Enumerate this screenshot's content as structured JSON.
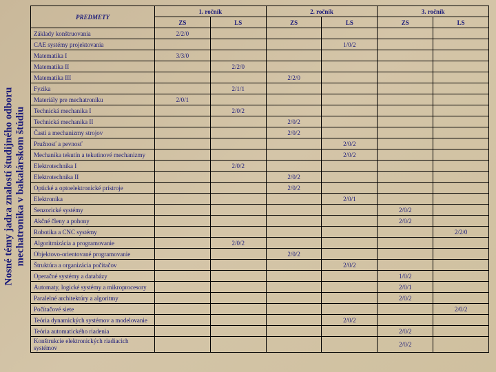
{
  "sidebar": {
    "line1": "Nosné témy jadra znalostí študijného odboru",
    "line2": "mechatronika v bakalárskom štúdiu"
  },
  "header": {
    "subjects": "PREDMETY",
    "years": [
      "1. ročník",
      "2. ročník",
      "3. ročník"
    ],
    "sems": [
      "ZS",
      "LS",
      "ZS",
      "LS",
      "ZS",
      "LS"
    ]
  },
  "rows": [
    {
      "name": "Základy konštruovania",
      "v": [
        "2/2/0",
        "",
        "",
        "",
        "",
        ""
      ]
    },
    {
      "name": "CAE systémy projektovania",
      "v": [
        "",
        "",
        "",
        "1/0/2",
        "",
        ""
      ]
    },
    {
      "name": "Matematika I",
      "v": [
        "3/3/0",
        "",
        "",
        "",
        "",
        ""
      ]
    },
    {
      "name": "Matematika II",
      "v": [
        "",
        "2/2/0",
        "",
        "",
        "",
        ""
      ]
    },
    {
      "name": "Matematika III",
      "v": [
        "",
        "",
        "2/2/0",
        "",
        "",
        ""
      ]
    },
    {
      "name": "Fyzika",
      "v": [
        "",
        "2/1/1",
        "",
        "",
        "",
        ""
      ]
    },
    {
      "name": "Materiály pre mechatroniku",
      "v": [
        "2/0/1",
        "",
        "",
        "",
        "",
        ""
      ]
    },
    {
      "name": "Technická mechanika I",
      "v": [
        "",
        "2/0/2",
        "",
        "",
        "",
        ""
      ]
    },
    {
      "name": "Technická mechanika II",
      "v": [
        "",
        "",
        "2/0/2",
        "",
        "",
        ""
      ]
    },
    {
      "name": "Časti a mechanizmy strojov",
      "v": [
        "",
        "",
        "2/0/2",
        "",
        "",
        ""
      ]
    },
    {
      "name": "Pružnosť a pevnosť",
      "v": [
        "",
        "",
        "",
        "2/0/2",
        "",
        ""
      ]
    },
    {
      "name": "Mechanika tekutín a tekutinové mechanizmy",
      "v": [
        "",
        "",
        "",
        "2/0/2",
        "",
        ""
      ]
    },
    {
      "name": "Elektrotechnika I",
      "v": [
        "",
        "2/0/2",
        "",
        "",
        "",
        ""
      ]
    },
    {
      "name": "Elektrotechnika II",
      "v": [
        "",
        "",
        "2/0/2",
        "",
        "",
        ""
      ]
    },
    {
      "name": "Optické a optoelektronické prístroje",
      "v": [
        "",
        "",
        "2/0/2",
        "",
        "",
        ""
      ]
    },
    {
      "name": "Elektronika",
      "v": [
        "",
        "",
        "",
        "2/0/1",
        "",
        ""
      ]
    },
    {
      "name": "Senzorické systémy",
      "v": [
        "",
        "",
        "",
        "",
        "2/0/2",
        ""
      ]
    },
    {
      "name": "Akčné členy a pohony",
      "v": [
        "",
        "",
        "",
        "",
        "2/0/2",
        ""
      ]
    },
    {
      "name": "Robotika a CNC systémy",
      "v": [
        "",
        "",
        "",
        "",
        "",
        "2/2/0"
      ]
    },
    {
      "name": "Algoritmizácia a programovanie",
      "v": [
        "",
        "2/0/2",
        "",
        "",
        "",
        ""
      ]
    },
    {
      "name": "Objektovo-orientované programovanie",
      "v": [
        "",
        "",
        "2/0/2",
        "",
        "",
        ""
      ]
    },
    {
      "name": "Štruktúra a organizácia počítačov",
      "v": [
        "",
        "",
        "",
        "2/0/2",
        "",
        ""
      ]
    },
    {
      "name": "Operačné systémy a databázy",
      "v": [
        "",
        "",
        "",
        "",
        "1/0/2",
        ""
      ]
    },
    {
      "name": "Automaty, logické systémy a mikroprocesory",
      "v": [
        "",
        "",
        "",
        "",
        "2/0/1",
        ""
      ]
    },
    {
      "name": "Paralelné architektúry a algoritmy",
      "v": [
        "",
        "",
        "",
        "",
        "2/0/2",
        ""
      ]
    },
    {
      "name": "Počítačové siete",
      "v": [
        "",
        "",
        "",
        "",
        "",
        "2/0/2"
      ]
    },
    {
      "name": "Teória dynamických systémov a modelovanie",
      "v": [
        "",
        "",
        "",
        "2/0/2",
        "",
        ""
      ]
    },
    {
      "name": "Teória automatického riadenia",
      "v": [
        "",
        "",
        "",
        "",
        "2/0/2",
        ""
      ]
    },
    {
      "name": "Konštrukcie elektronických riadiacich systémov",
      "v": [
        "",
        "",
        "",
        "",
        "2/0/2",
        ""
      ]
    }
  ]
}
